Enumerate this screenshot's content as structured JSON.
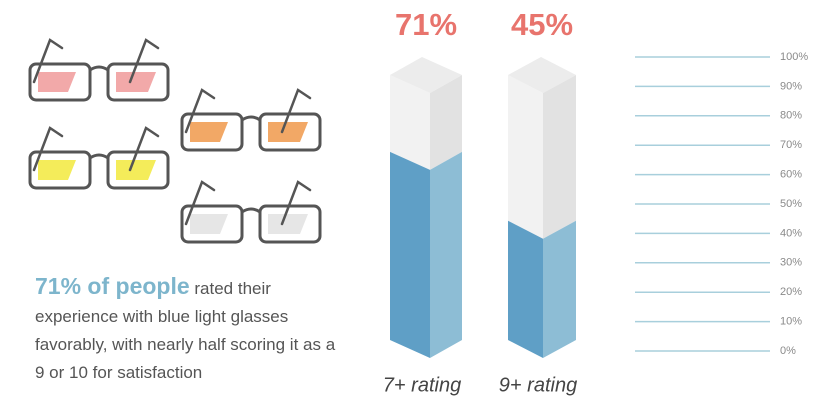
{
  "chart_data": {
    "type": "bar3d",
    "categories": [
      "7+ rating",
      "9+ rating"
    ],
    "values": [
      71,
      45
    ],
    "value_labels": [
      "71%",
      "45%"
    ],
    "color": "#5f9fc6",
    "empty_color": "#f2f2f2",
    "label_color": "#e8746d",
    "ylim": [
      0,
      100
    ],
    "yticks": [
      {
        "value": 0,
        "label": "0%"
      },
      {
        "value": 10,
        "label": "10%"
      },
      {
        "value": 20,
        "label": "20%"
      },
      {
        "value": 30,
        "label": "30%"
      },
      {
        "value": 40,
        "label": "40%"
      },
      {
        "value": 50,
        "label": "50%"
      },
      {
        "value": 60,
        "label": "60%"
      },
      {
        "value": 70,
        "label": "70%"
      },
      {
        "value": 80,
        "label": "80%"
      },
      {
        "value": 90,
        "label": "90%"
      },
      {
        "value": 100,
        "label": "100%"
      }
    ],
    "annotation": {
      "highlight": "71% of people",
      "text": "rated their experience with blue light glasses favorably, with nearly half scoring it as a 9 or 10 for satisfaction"
    }
  }
}
